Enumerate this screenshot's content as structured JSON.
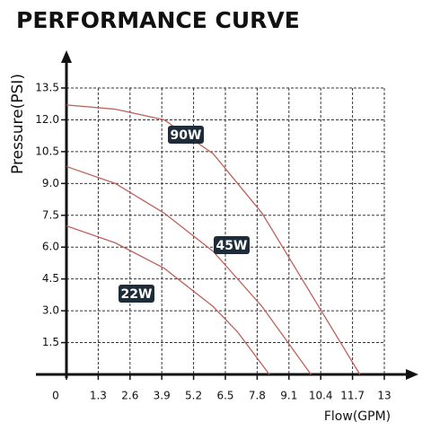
{
  "chart_data": {
    "type": "line",
    "title": "PERFORMANCE CURVE",
    "x_label": "Flow(GPM)",
    "y_label": "Pressure(PSI)",
    "xlim": [
      0,
      13
    ],
    "ylim": [
      0,
      13.5
    ],
    "xticks": [
      0,
      1.3,
      2.6,
      3.9,
      5.2,
      6.5,
      7.8,
      9.1,
      10.4,
      11.7,
      13
    ],
    "yticks": [
      1.5,
      {
        "value": 3,
        "label": "3.0"
      },
      4.5,
      {
        "value": 6,
        "label": "6.0"
      },
      7.5,
      {
        "value": 9,
        "label": "9.0"
      },
      10.5,
      {
        "value": 12,
        "label": "12.0"
      },
      13.5
    ],
    "grid": true,
    "series": [
      {
        "name": "90W",
        "color": "#c0605a",
        "x": [
          0,
          2,
          4,
          6,
          8,
          10,
          12
        ],
        "values": [
          12.7,
          12.5,
          12.0,
          10.4,
          7.6,
          3.8,
          0
        ]
      },
      {
        "name": "45W",
        "color": "#c0605a",
        "x": [
          0,
          2,
          4,
          6,
          8,
          10
        ],
        "values": [
          9.8,
          9.0,
          7.6,
          5.8,
          3.2,
          0
        ]
      },
      {
        "name": "22W",
        "color": "#c0605a",
        "x": [
          0,
          2,
          4,
          6,
          7,
          8.3
        ],
        "values": [
          7.0,
          6.2,
          5.0,
          3.2,
          2.0,
          0
        ]
      }
    ]
  }
}
